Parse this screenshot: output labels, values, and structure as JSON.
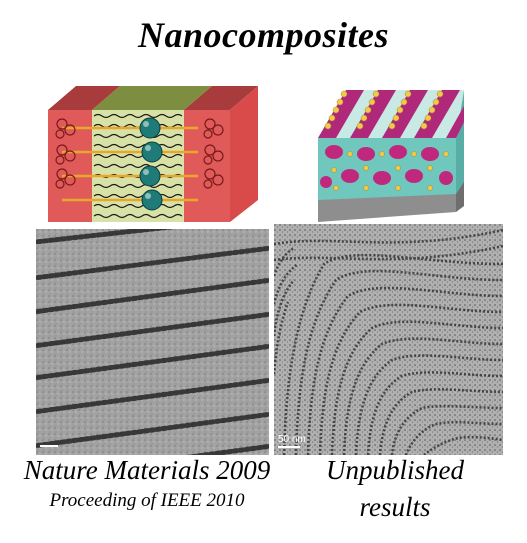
{
  "title": "Nanocomposites",
  "scale_bar_label": "50 nm",
  "captions": {
    "left_main": "Nature Materials 2009",
    "left_sub": "Proceeding of IEEE 2010",
    "right_line1": "Unpublished",
    "right_line2": "results"
  },
  "colors": {
    "red_block": "#e05a5a",
    "red_block_top": "#a83c3c",
    "green_block": "#aeb86a",
    "green_block_top": "#7e8e40",
    "nanoparticle": "#1f7b78",
    "linker": "#e8a62a",
    "stripe_magenta": "#b0287a",
    "matrix_teal": "#6fc7be",
    "gold_particle": "#f0cb4a",
    "base_gray": "#8e8e8e"
  },
  "icons": {
    "left_illustration": "lamellar-block-copolymer-nanoparticle-icon",
    "right_illustration": "cylindrical-nanocomposite-film-icon"
  }
}
